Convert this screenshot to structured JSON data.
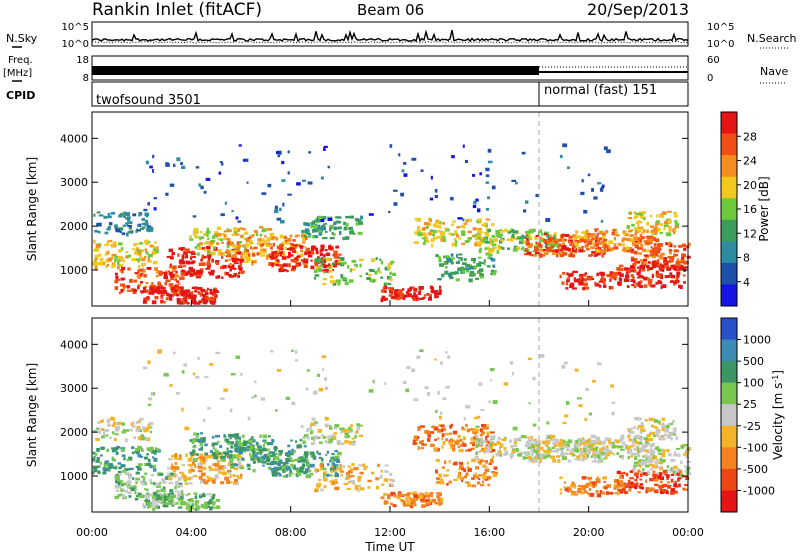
{
  "header": {
    "station": "Rankin Inlet (fitACF)",
    "beam": "Beam 06",
    "date": "20/Sep/2013"
  },
  "top_panels": {
    "nsky_label": "N.Sky",
    "nsky_ticks": [
      "10^5",
      "10^0"
    ],
    "nsearch_label": "N.Search",
    "nsearch_ticks": [
      "10^5",
      "10^0"
    ],
    "freq_label": "Freq.",
    "freq_unit": "[MHz]",
    "freq_ticks": [
      "18",
      "8"
    ],
    "nave_label": "Nave",
    "nave_ticks": [
      "60",
      "0"
    ],
    "cpid_label": "CPID",
    "cpid_segments": [
      {
        "name": "twofsound 3501",
        "start_h": 0,
        "end_h": 18
      },
      {
        "name": "normal (fast) 151",
        "start_h": 18,
        "end_h": 24
      }
    ]
  },
  "colors": {
    "power": [
      "#1414e6",
      "#1e50aa",
      "#2d8ca0",
      "#3c9c5a",
      "#6ec83c",
      "#f0c81e",
      "#f58c1e",
      "#f05014",
      "#e61414"
    ],
    "velocity": [
      "#2850c8",
      "#3c8cb4",
      "#3c9664",
      "#78c850",
      "#c8c8c8",
      "#f5b428",
      "#f5821e",
      "#f04614",
      "#e61414"
    ]
  },
  "chart_data": [
    {
      "type": "heatmap",
      "name": "Power",
      "ylabel": "Slant Range [km]",
      "x_range_h": [
        0,
        24
      ],
      "ylim_km": [
        180,
        4600
      ],
      "y_ticks": [
        1000,
        2000,
        3000,
        4000
      ],
      "colorbar_label": "Power [dB]",
      "colorbar_ticks": [
        "28",
        "24",
        "20",
        "16",
        "12",
        "8",
        "4"
      ],
      "colorbar_range_db": [
        0,
        32
      ],
      "mode_change_h": 18
    },
    {
      "type": "heatmap",
      "name": "Velocity",
      "ylabel": "Slant Range [km]",
      "x_range_h": [
        0,
        24
      ],
      "ylim_km": [
        180,
        4600
      ],
      "y_ticks": [
        1000,
        2000,
        3000,
        4000
      ],
      "colorbar_label": "Velocity [m s^-1]",
      "colorbar_ticks": [
        "1000",
        "500",
        "100",
        "25",
        "-25",
        "-100",
        "-500",
        "-1000"
      ],
      "mode_change_h": 18
    }
  ],
  "x_axis": {
    "label": "Time UT",
    "ticks": [
      "00:00",
      "04:00",
      "08:00",
      "12:00",
      "16:00",
      "20:00",
      "00:00"
    ]
  }
}
